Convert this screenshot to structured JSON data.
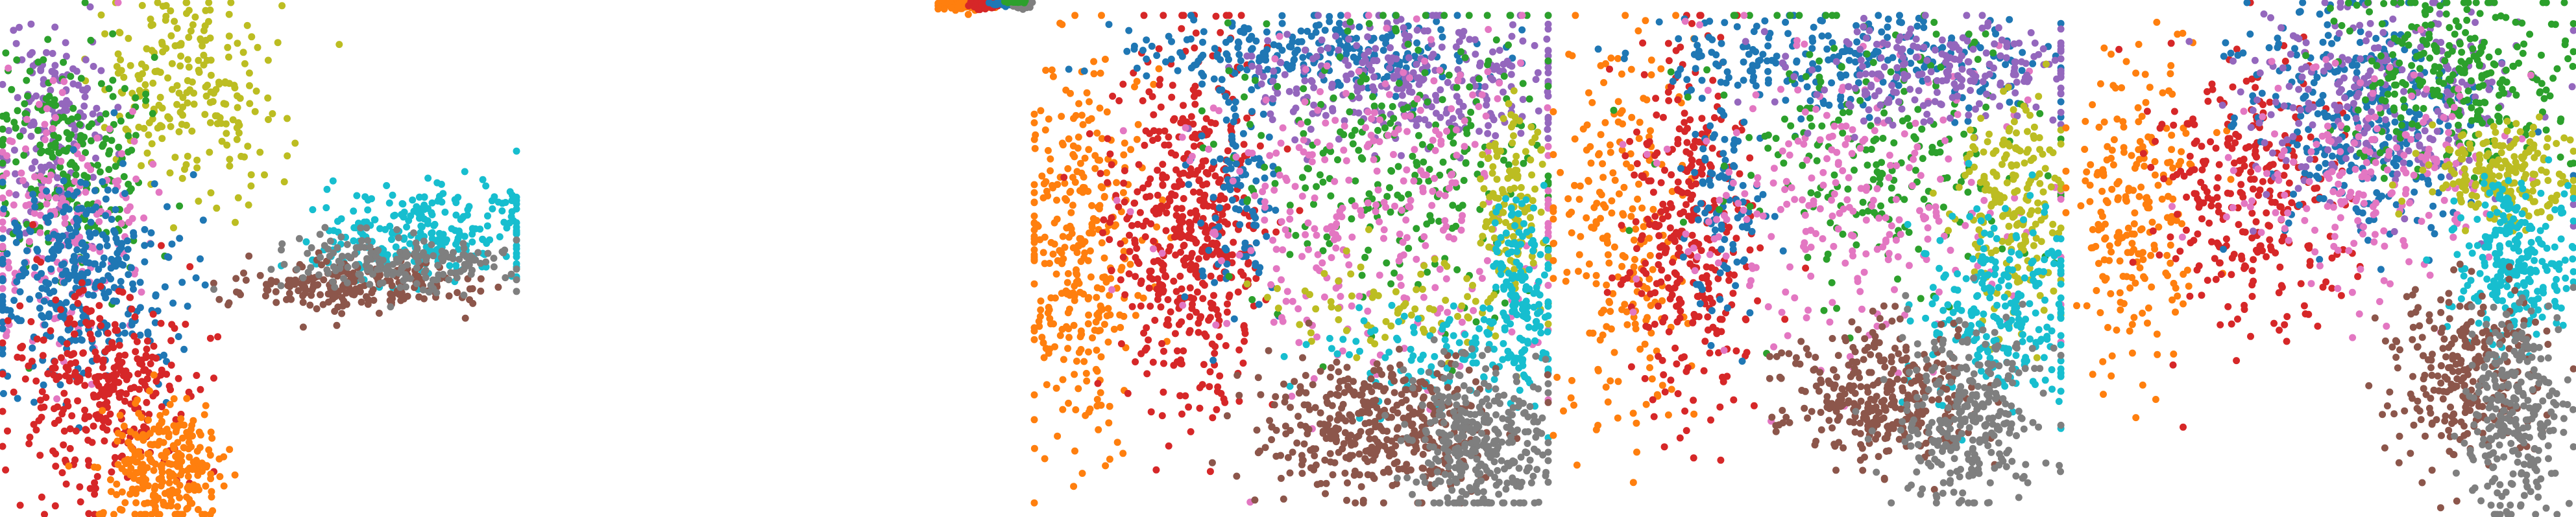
{
  "chart_data": [
    {
      "type": "scatter",
      "title": "",
      "xlabel": "",
      "ylabel": "",
      "grid": false,
      "legend": "none",
      "xlim": [
        0,
        100
      ],
      "ylim": [
        0,
        100
      ],
      "clusters": [
        {
          "color": "#bcbd22",
          "count": 230,
          "regions": [
            {
              "cx": 36,
              "cy": 82,
              "sx": 9,
              "sy": 10,
              "w": 1
            }
          ]
        },
        {
          "color": "#9467bd",
          "count": 150,
          "regions": [
            {
              "cx": 10,
              "cy": 76,
              "sx": 5,
              "sy": 10,
              "w": 1
            }
          ]
        },
        {
          "color": "#2ca02c",
          "count": 220,
          "regions": [
            {
              "cx": 14,
              "cy": 70,
              "sx": 7,
              "sy": 11,
              "w": 1
            }
          ]
        },
        {
          "color": "#e377c2",
          "count": 190,
          "regions": [
            {
              "cx": 12,
              "cy": 56,
              "sx": 8,
              "sy": 12,
              "w": 1
            }
          ]
        },
        {
          "color": "#1f77b4",
          "count": 330,
          "regions": [
            {
              "cx": 16,
              "cy": 45,
              "sx": 9,
              "sy": 10,
              "w": 1
            }
          ]
        },
        {
          "color": "#d62728",
          "count": 330,
          "regions": [
            {
              "cx": 20,
              "cy": 25,
              "sx": 9,
              "sy": 10,
              "w": 1
            }
          ]
        },
        {
          "color": "#ff7f0e",
          "count": 260,
          "regions": [
            {
              "cx": 31,
              "cy": 10,
              "sx": 6,
              "sy": 6,
              "w": 1
            }
          ]
        },
        {
          "color": "#17becf",
          "count": 260,
          "regions": [
            {
              "cx": 82,
              "cy": 55,
              "sx": 11,
              "sy": 5,
              "w": 1
            }
          ]
        },
        {
          "color": "#8c564b",
          "count": 210,
          "regions": [
            {
              "cx": 68,
              "cy": 45,
              "sx": 11,
              "sy": 2.5,
              "w": 1
            }
          ]
        },
        {
          "color": "#7f7f7f",
          "count": 190,
          "regions": [
            {
              "cx": 78,
              "cy": 49,
              "sx": 11,
              "sy": 3,
              "w": 1
            }
          ]
        }
      ]
    },
    {
      "type": "scatter",
      "title": "",
      "xlabel": "",
      "ylabel": "",
      "grid": false,
      "legend": "none",
      "xlim": [
        0,
        100
      ],
      "ylim": [
        0,
        100
      ],
      "clusters": [
        {
          "color": "#ff7f0e",
          "count": 130,
          "regions": [
            {
              "cx": 30,
              "cy": 94,
              "sx": 14,
              "sy": 4,
              "w": 1
            }
          ]
        },
        {
          "color": "#d62728",
          "count": 90,
          "regions": [
            {
              "cx": 50,
              "cy": 95,
              "sx": 8,
              "sy": 3,
              "w": 1
            }
          ]
        },
        {
          "color": "#1f77b4",
          "count": 60,
          "regions": [
            {
              "cx": 70,
              "cy": 96,
              "sx": 6,
              "sy": 2,
              "w": 1
            }
          ]
        },
        {
          "color": "#7f7f7f",
          "count": 70,
          "regions": [
            {
              "cx": 86,
              "cy": 95,
              "sx": 5,
              "sy": 3,
              "w": 1
            }
          ]
        },
        {
          "color": "#2ca02c",
          "count": 30,
          "regions": [
            {
              "cx": 80,
              "cy": 98,
              "sx": 5,
              "sy": 1,
              "w": 1
            }
          ]
        }
      ]
    },
    {
      "type": "scatter",
      "title": "",
      "xlabel": "",
      "ylabel": "",
      "grid": false,
      "legend": "none",
      "xlim": [
        0,
        100
      ],
      "ylim": [
        0,
        100
      ],
      "clusters": [
        {
          "color": "#ff7f0e",
          "count": 340,
          "regions": [
            {
              "cx": 10,
              "cy": 52,
              "sx": 6,
              "sy": 20,
              "w": 1
            }
          ]
        },
        {
          "color": "#d62728",
          "count": 520,
          "regions": [
            {
              "cx": 30,
              "cy": 58,
              "sx": 7,
              "sy": 18,
              "w": 1
            }
          ]
        },
        {
          "color": "#1f77b4",
          "count": 350,
          "regions": [
            {
              "cx": 52,
              "cy": 92,
              "sx": 18,
              "sy": 4,
              "w": 0.7
            },
            {
              "cx": 40,
              "cy": 62,
              "sx": 4,
              "sy": 14,
              "w": 0.3
            }
          ]
        },
        {
          "color": "#9467bd",
          "count": 300,
          "regions": [
            {
              "cx": 72,
              "cy": 86,
              "sx": 16,
              "sy": 7,
              "w": 1
            }
          ]
        },
        {
          "color": "#2ca02c",
          "count": 260,
          "regions": [
            {
              "cx": 70,
              "cy": 70,
              "sx": 17,
              "sy": 16,
              "w": 1
            }
          ]
        },
        {
          "color": "#e377c2",
          "count": 320,
          "regions": [
            {
              "cx": 66,
              "cy": 58,
              "sx": 19,
              "sy": 18,
              "w": 1
            }
          ]
        },
        {
          "color": "#bcbd22",
          "count": 210,
          "regions": [
            {
              "cx": 92,
              "cy": 63,
              "sx": 3,
              "sy": 9,
              "w": 0.6
            },
            {
              "cx": 72,
              "cy": 40,
              "sx": 12,
              "sy": 5,
              "w": 0.4
            }
          ]
        },
        {
          "color": "#17becf",
          "count": 260,
          "regions": [
            {
              "cx": 94,
              "cy": 44,
              "sx": 3,
              "sy": 10,
              "w": 0.6
            },
            {
              "cx": 78,
              "cy": 30,
              "sx": 11,
              "sy": 5,
              "w": 0.4
            }
          ]
        },
        {
          "color": "#8c564b",
          "count": 420,
          "regions": [
            {
              "cx": 68,
              "cy": 16,
              "sx": 12,
              "sy": 7,
              "w": 1
            }
          ]
        },
        {
          "color": "#7f7f7f",
          "count": 330,
          "regions": [
            {
              "cx": 86,
              "cy": 12,
              "sx": 7,
              "sy": 8,
              "w": 1
            }
          ]
        }
      ]
    },
    {
      "type": "scatter",
      "title": "",
      "xlabel": "",
      "ylabel": "",
      "grid": false,
      "legend": "none",
      "xlim": [
        0,
        100
      ],
      "ylim": [
        0,
        100
      ],
      "clusters": [
        {
          "color": "#ff7f0e",
          "count": 230,
          "regions": [
            {
              "cx": 14,
              "cy": 55,
              "sx": 7,
              "sy": 20,
              "w": 1
            }
          ]
        },
        {
          "color": "#d62728",
          "count": 330,
          "regions": [
            {
              "cx": 27,
              "cy": 55,
              "sx": 6,
              "sy": 18,
              "w": 1
            }
          ]
        },
        {
          "color": "#1f77b4",
          "count": 360,
          "regions": [
            {
              "cx": 56,
              "cy": 90,
              "sx": 20,
              "sy": 5,
              "w": 0.7
            },
            {
              "cx": 34,
              "cy": 62,
              "sx": 4,
              "sy": 12,
              "w": 0.3
            }
          ]
        },
        {
          "color": "#2ca02c",
          "count": 230,
          "regions": [
            {
              "cx": 62,
              "cy": 72,
              "sx": 18,
              "sy": 14,
              "w": 1
            }
          ]
        },
        {
          "color": "#e377c2",
          "count": 260,
          "regions": [
            {
              "cx": 60,
              "cy": 62,
              "sx": 20,
              "sy": 16,
              "w": 1
            }
          ]
        },
        {
          "color": "#9467bd",
          "count": 220,
          "regions": [
            {
              "cx": 76,
              "cy": 88,
              "sx": 14,
              "sy": 6,
              "w": 1
            }
          ]
        },
        {
          "color": "#bcbd22",
          "count": 200,
          "regions": [
            {
              "cx": 90,
              "cy": 60,
              "sx": 5,
              "sy": 12,
              "w": 1
            }
          ]
        },
        {
          "color": "#17becf",
          "count": 250,
          "regions": [
            {
              "cx": 88,
              "cy": 40,
              "sx": 8,
              "sy": 10,
              "w": 1
            }
          ]
        },
        {
          "color": "#8c564b",
          "count": 330,
          "regions": [
            {
              "cx": 64,
              "cy": 22,
              "sx": 10,
              "sy": 7,
              "w": 1
            }
          ]
        },
        {
          "color": "#7f7f7f",
          "count": 300,
          "regions": [
            {
              "cx": 82,
              "cy": 18,
              "sx": 7,
              "sy": 9,
              "w": 1
            }
          ]
        }
      ]
    },
    {
      "type": "scatter",
      "title": "",
      "xlabel": "",
      "ylabel": "",
      "grid": false,
      "legend": "none",
      "xlim": [
        0,
        100
      ],
      "ylim": [
        0,
        100
      ],
      "clusters": [
        {
          "color": "#ff7f0e",
          "count": 230,
          "regions": [
            {
              "cx": 14,
              "cy": 60,
              "sx": 6,
              "sy": 16,
              "w": 1
            }
          ]
        },
        {
          "color": "#d62728",
          "count": 300,
          "regions": [
            {
              "cx": 36,
              "cy": 62,
              "sx": 9,
              "sy": 14,
              "w": 1
            }
          ]
        },
        {
          "color": "#1f77b4",
          "count": 320,
          "regions": [
            {
              "cx": 58,
              "cy": 78,
              "sx": 11,
              "sy": 11,
              "w": 1
            }
          ]
        },
        {
          "color": "#9467bd",
          "count": 280,
          "regions": [
            {
              "cx": 64,
              "cy": 80,
              "sx": 13,
              "sy": 10,
              "w": 1
            }
          ]
        },
        {
          "color": "#2ca02c",
          "count": 280,
          "regions": [
            {
              "cx": 76,
              "cy": 84,
              "sx": 11,
              "sy": 9,
              "w": 1
            }
          ]
        },
        {
          "color": "#e377c2",
          "count": 200,
          "regions": [
            {
              "cx": 60,
              "cy": 66,
              "sx": 13,
              "sy": 10,
              "w": 1
            }
          ]
        },
        {
          "color": "#bcbd22",
          "count": 200,
          "regions": [
            {
              "cx": 86,
              "cy": 66,
              "sx": 7,
              "sy": 5,
              "w": 1
            }
          ]
        },
        {
          "color": "#17becf",
          "count": 260,
          "regions": [
            {
              "cx": 88,
              "cy": 48,
              "sx": 6,
              "sy": 8,
              "w": 1
            }
          ]
        },
        {
          "color": "#8c564b",
          "count": 260,
          "regions": [
            {
              "cx": 78,
              "cy": 28,
              "sx": 7,
              "sy": 9,
              "w": 1
            }
          ]
        },
        {
          "color": "#7f7f7f",
          "count": 280,
          "regions": [
            {
              "cx": 88,
              "cy": 20,
              "sx": 5,
              "sy": 10,
              "w": 1
            }
          ]
        }
      ]
    }
  ]
}
